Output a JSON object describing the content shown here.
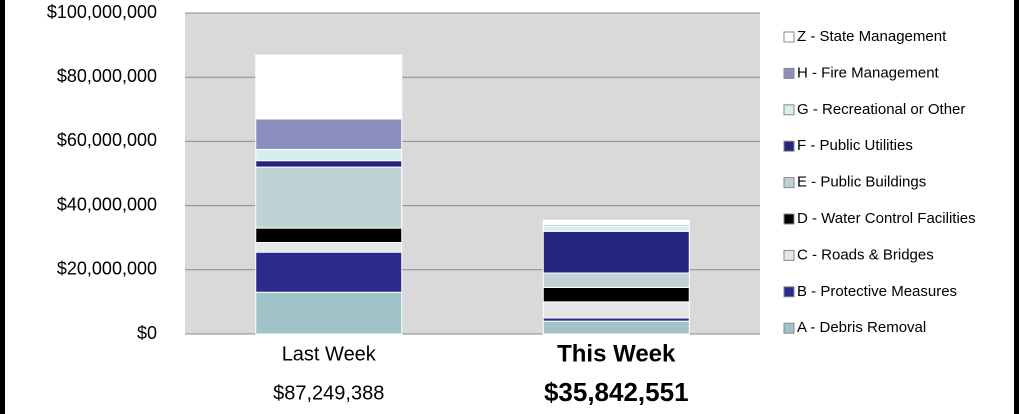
{
  "chart_data": {
    "type": "stacked_bar",
    "categories": [
      "Last Week",
      "This Week"
    ],
    "totals": [
      87249388,
      35842551
    ],
    "total_labels": [
      "$87,249,388",
      "$35,842,551"
    ],
    "series": [
      {
        "name": "A - Debris Removal",
        "color": "#9fc3c6",
        "values": [
          13000000,
          4000000
        ]
      },
      {
        "name": "B - Protective Measures",
        "color": "#2b2b8c",
        "values": [
          12500000,
          1000000
        ]
      },
      {
        "name": "C - Roads & Bridges",
        "color": "#e6e6e6",
        "values": [
          3000000,
          5000000
        ]
      },
      {
        "name": "D - Water Control Facilities",
        "color": "#000000",
        "values": [
          4500000,
          4500000
        ]
      },
      {
        "name": "E - Public Buildings",
        "color": "#bfd3d5",
        "values": [
          19000000,
          4500000
        ]
      },
      {
        "name": "F - Public Utilities",
        "color": "#25257e",
        "values": [
          2000000,
          13000000
        ]
      },
      {
        "name": "G - Recreational or Other",
        "color": "#d5eef0",
        "values": [
          3500000,
          1500000
        ]
      },
      {
        "name": "H - Fire Management",
        "color": "#8d8dbf",
        "values": [
          9500000,
          500000
        ]
      },
      {
        "name": "Z - State Management",
        "color": "#ffffff",
        "values": [
          20250000,
          1500000
        ]
      }
    ],
    "ylim": [
      0,
      100000000
    ],
    "yticks": [
      {
        "value": 0,
        "label": "$0"
      },
      {
        "value": 20000000,
        "label": "$20,000,000"
      },
      {
        "value": 40000000,
        "label": "$40,000,000"
      },
      {
        "value": 60000000,
        "label": "$60,000,000"
      },
      {
        "value": 80000000,
        "label": "$80,000,000"
      },
      {
        "value": 100000000,
        "label": "$100,000,000"
      }
    ],
    "grid": true
  }
}
